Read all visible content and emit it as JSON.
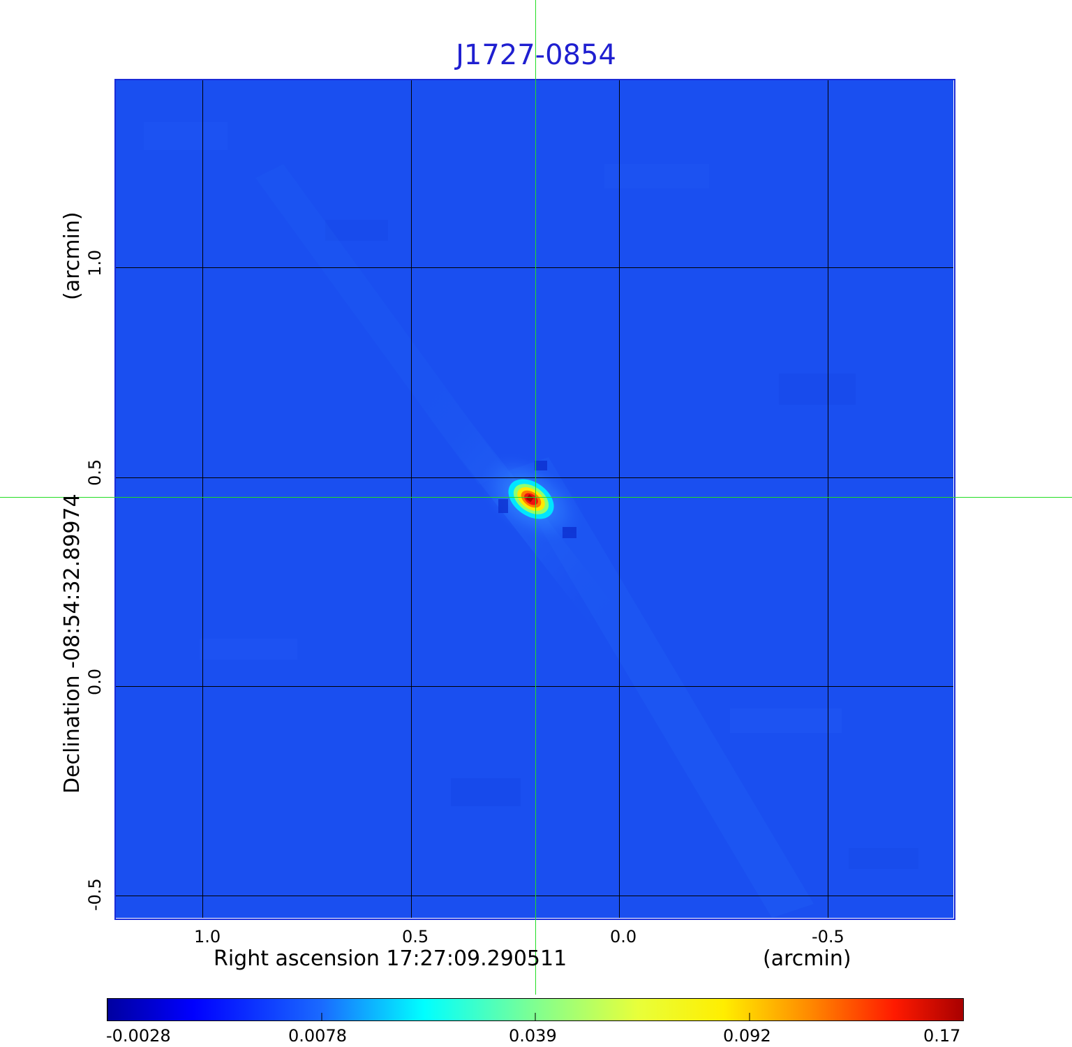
{
  "title": "J1727-0854",
  "axes": {
    "x_label": "Right ascension  17:27:09.290511",
    "x_unit": "(arcmin)",
    "y_label": "Declination  -08:54:32.89974",
    "y_unit": "(arcmin)",
    "x_ticks": [
      "1.0",
      "0.5",
      "0.0",
      "-0.5"
    ],
    "y_ticks": [
      "1.0",
      "0.5",
      "0.0",
      "-0.5"
    ]
  },
  "colorbar": {
    "ticks": [
      "-0.0028",
      "0.0078",
      "0.039",
      "0.092",
      "0.17"
    ],
    "colormap": "jet"
  },
  "colors": {
    "title": "#1f1fd0",
    "background_field": "#1a4ff0",
    "crosshair": "#22dd22",
    "source_peak": "#cc0000"
  },
  "image": {
    "source": "compact bright source near center, elongated along NW-SE diagonal",
    "crosshair": "on"
  }
}
